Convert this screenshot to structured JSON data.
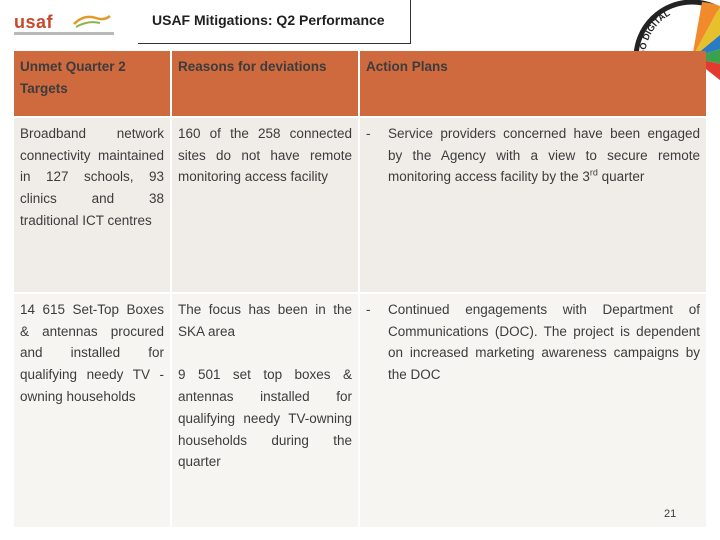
{
  "header": {
    "logo_text": "usaf",
    "title": "USAF Mitigations: Q2 Performance",
    "badge_text": "GO DIGITAL"
  },
  "table": {
    "headers": [
      "Unmet Quarter 2 Targets",
      "Reasons for deviations",
      "Action Plans"
    ],
    "rows": [
      {
        "target": "Broadband network connectivity maintained in 127 schools, 93 clinics and 38 traditional ICT centres",
        "reasons": [
          "160 of the 258 connected sites do not have remote monitoring access facility"
        ],
        "action_dash": "-",
        "action_main": "Service providers concerned have been engaged by the Agency with a view to secure remote monitoring access facility by the 3",
        "action_sup": "rd",
        "action_end": " quarter"
      },
      {
        "target": "14 615 Set-Top Boxes & antennas procured and installed for qualifying needy TV -owning households",
        "reasons": [
          "The focus has been in the SKA area",
          "9 501 set top boxes & antennas installed for qualifying needy TV-owning households during the quarter"
        ],
        "action_dash": "-",
        "action_main": "Continued engagements with Department of Communications (DOC). The project is dependent on increased marketing awareness campaigns by the DOC"
      }
    ]
  },
  "footer": {
    "page_number": "21"
  },
  "colors": {
    "header_bg": "#cf6a3e",
    "row1_bg": "#f0ece7",
    "row2_bg": "#f7f5f2",
    "logo": "#c9472a"
  }
}
